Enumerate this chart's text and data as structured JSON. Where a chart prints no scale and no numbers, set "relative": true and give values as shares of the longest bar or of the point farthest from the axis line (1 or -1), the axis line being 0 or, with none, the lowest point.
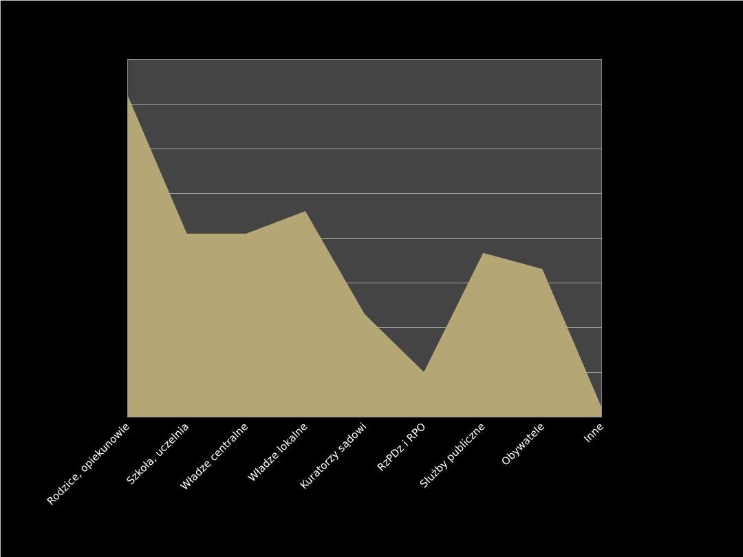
{
  "chart_data": {
    "type": "area",
    "relative": true,
    "grid": "y",
    "categories": [
      "Rodzice, opiekunowie",
      "Szkoła, uczelnia",
      "Władze centralne",
      "Władze lokalne",
      "Kuratorzy sądowi",
      "RzPDz i RPO",
      "Służby publiczne",
      "Obywatele",
      "Inne"
    ],
    "series": [
      {
        "color": "#b4a675",
        "values": [
          1,
          0.57,
          0.57,
          0.64,
          0.32,
          0.14,
          0.51,
          0.46,
          0.03
        ]
      }
    ]
  }
}
